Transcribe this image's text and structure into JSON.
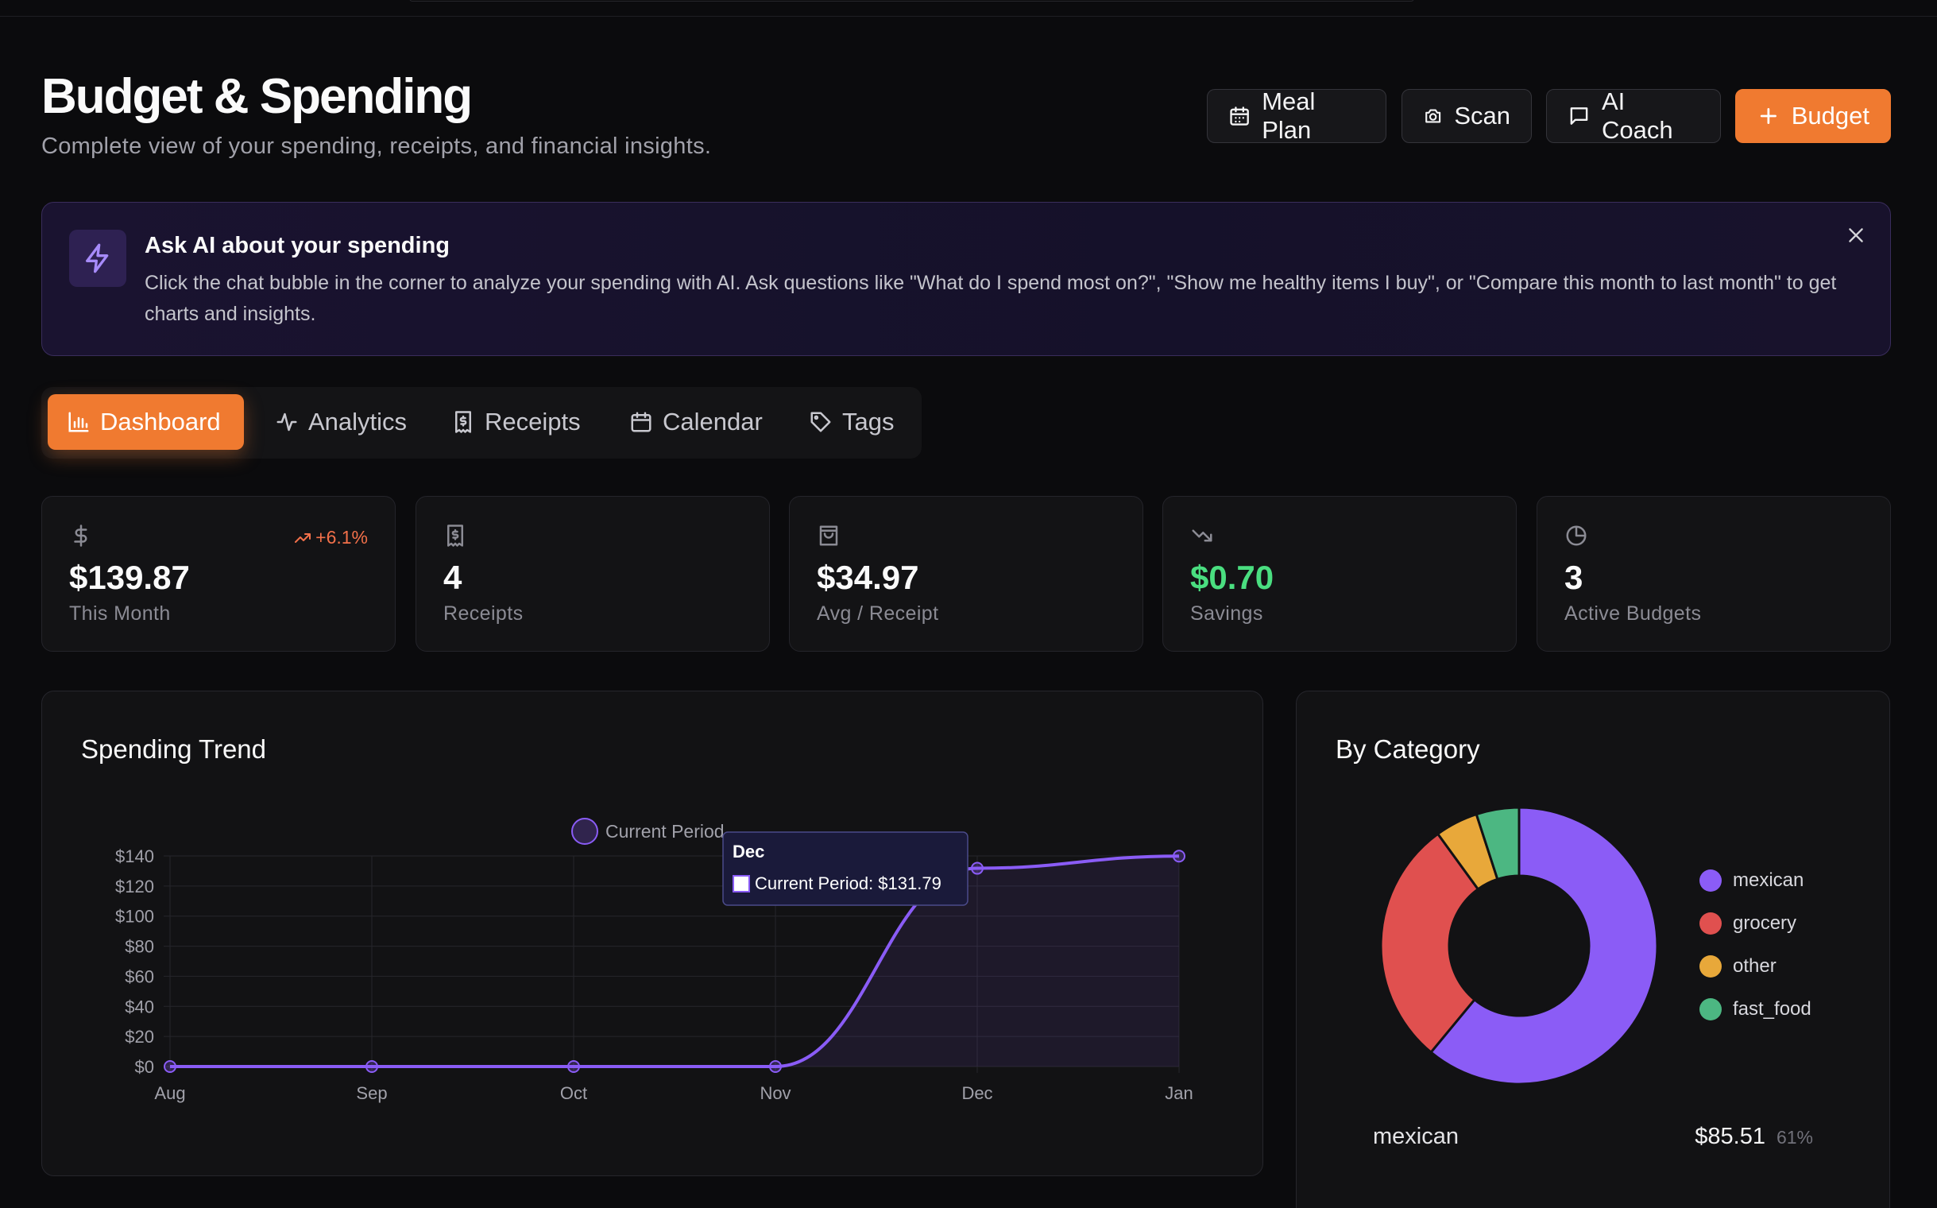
{
  "header": {
    "title": "Budget & Spending",
    "subtitle": "Complete view of your spending, receipts, and financial insights.",
    "buttons": {
      "meal_plan": "Meal Plan",
      "scan": "Scan",
      "ai_coach": "AI Coach",
      "budget": "Budget"
    }
  },
  "banner": {
    "title": "Ask AI about your spending",
    "text": "Click the chat bubble in the corner to analyze your spending with AI. Ask questions like \"What do I spend most on?\", \"Show me healthy items I buy\", or \"Compare this month to last month\" to get charts and insights."
  },
  "tabs": [
    {
      "label": "Dashboard",
      "icon": "bar-chart-icon",
      "active": true
    },
    {
      "label": "Analytics",
      "icon": "activity-icon",
      "active": false
    },
    {
      "label": "Receipts",
      "icon": "receipt-icon",
      "active": false
    },
    {
      "label": "Calendar",
      "icon": "calendar-icon",
      "active": false
    },
    {
      "label": "Tags",
      "icon": "tag-icon",
      "active": false
    }
  ],
  "stats": [
    {
      "value": "$139.87",
      "label": "This Month",
      "icon": "dollar-icon",
      "trend": "+6.1%",
      "value_color": "#fafafa"
    },
    {
      "value": "4",
      "label": "Receipts",
      "icon": "receipt-icon",
      "value_color": "#fafafa"
    },
    {
      "value": "$34.97",
      "label": "Avg / Receipt",
      "icon": "shopping-bag-icon",
      "value_color": "#fafafa"
    },
    {
      "value": "$0.70",
      "label": "Savings",
      "icon": "trending-down-icon",
      "value_color": "#4ade80"
    },
    {
      "value": "3",
      "label": "Active Budgets",
      "icon": "pie-chart-icon",
      "value_color": "#fafafa"
    }
  ],
  "trend_card": {
    "title": "Spending Trend",
    "tooltip_title": "Dec",
    "tooltip_text": "Current Period: $131.79"
  },
  "category_card": {
    "title": "By Category",
    "rows": [
      {
        "name": "mexican",
        "amount": "$85.51",
        "pct": "61%"
      }
    ]
  },
  "colors": {
    "accent": "#f07a30",
    "line": "#8a5cf6",
    "mexican": "#8b5cf6",
    "grocery": "#e0504f",
    "other": "#e8a83a",
    "fast_food": "#4cb782",
    "trend_up": "#f2704a",
    "savings": "#4ade80"
  },
  "chart_data": [
    {
      "type": "line",
      "title": "Spending Trend",
      "categories": [
        "Aug",
        "Sep",
        "Oct",
        "Nov",
        "Dec",
        "Jan"
      ],
      "series": [
        {
          "name": "Current Period",
          "values": [
            0,
            0,
            0,
            0,
            131.79,
            139.87
          ]
        }
      ],
      "ylim": [
        0,
        140
      ],
      "yticks": [
        "$0",
        "$20",
        "$40",
        "$60",
        "$80",
        "$100",
        "$120",
        "$140"
      ],
      "legend": "top",
      "grid": true
    },
    {
      "type": "pie",
      "title": "By Category",
      "categories": [
        "mexican",
        "grocery",
        "other",
        "fast_food"
      ],
      "values": [
        61,
        29,
        5,
        5
      ],
      "legend": "right"
    }
  ]
}
